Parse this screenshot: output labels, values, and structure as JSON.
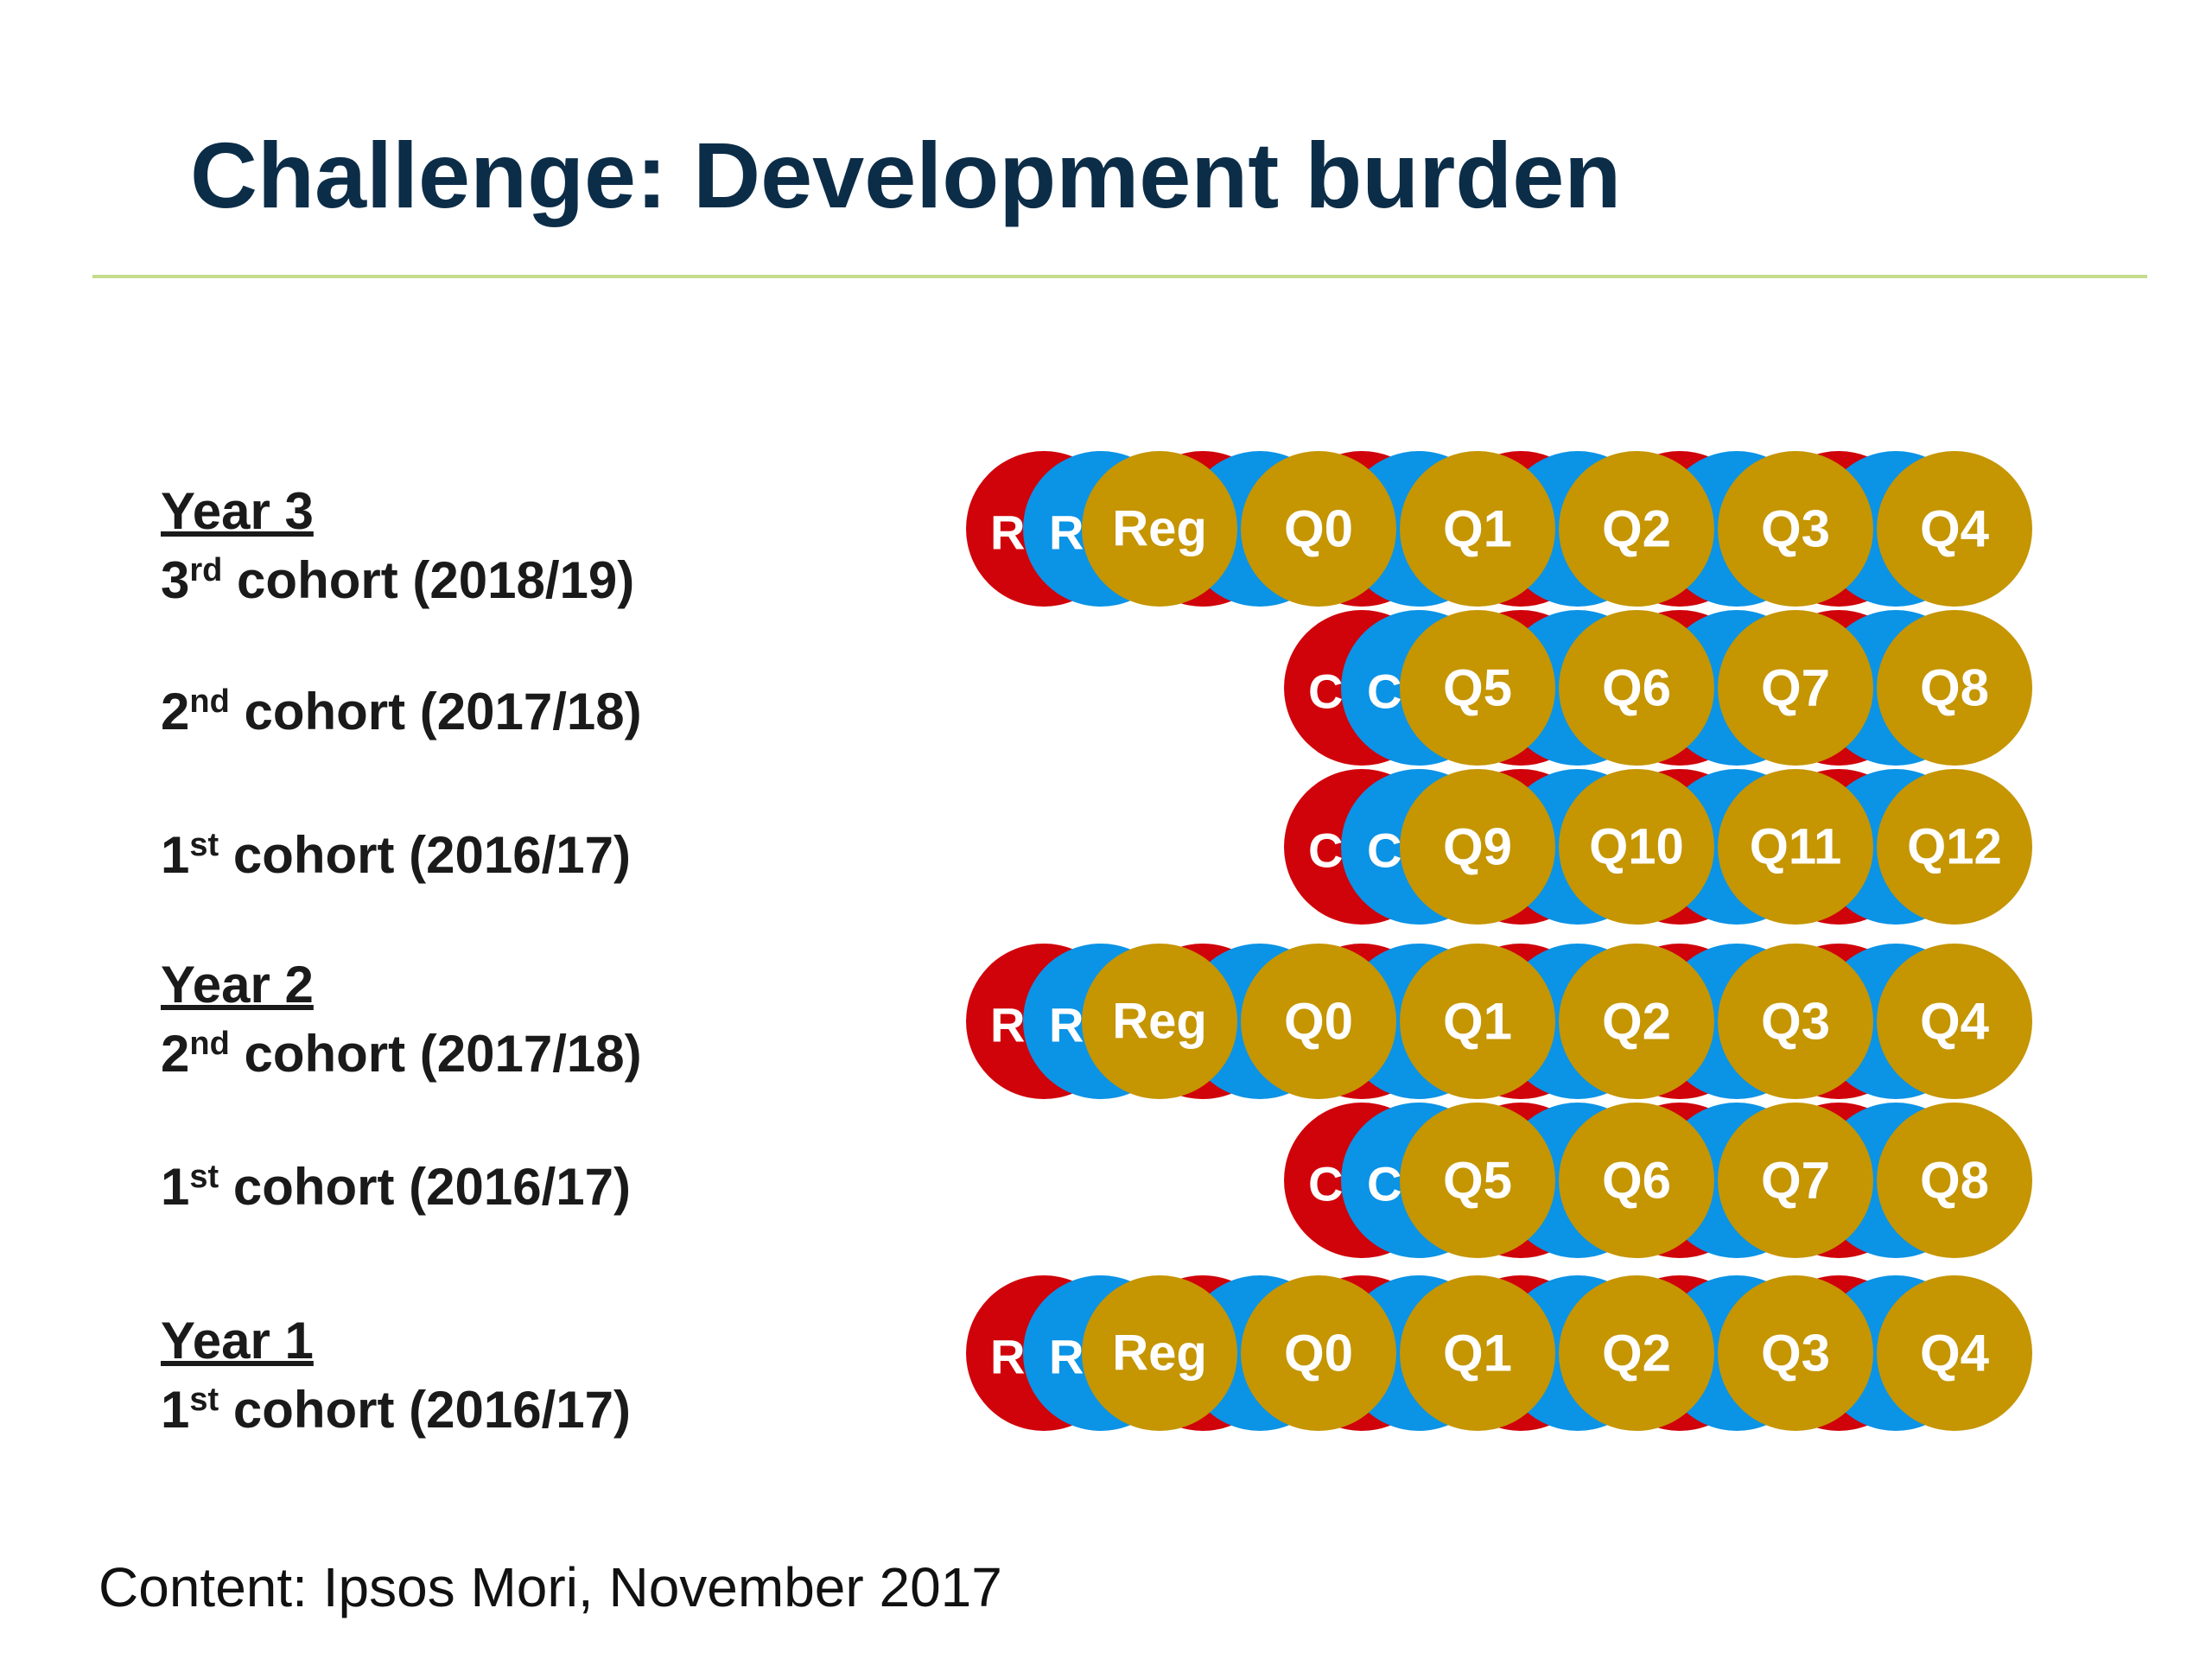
{
  "title": "Challenge: Development burden",
  "footer": "Content: Ipsos Mori, November 2017",
  "colors": {
    "title": "#0c2d48",
    "rule": "#c4dc8c",
    "red": "#d0020a",
    "blue": "#0b93e6",
    "gold": "#c59502"
  },
  "rows": [
    {
      "year": "Year 3",
      "cohort_ord": "3",
      "cohort_sup": "rd",
      "cohort_rest": " cohort (2018/19)",
      "red_label": "R",
      "blue_label": "R",
      "bubbles": [
        "Reg",
        "Q0",
        "Q1",
        "Q2",
        "Q3",
        "Q4"
      ]
    },
    {
      "year": "",
      "cohort_ord": "2",
      "cohort_sup": "nd",
      "cohort_rest": " cohort (2017/18)",
      "red_label": "C",
      "blue_label": "C",
      "bubbles": [
        "Q5",
        "Q6",
        "Q7",
        "Q8"
      ]
    },
    {
      "year": "",
      "cohort_ord": "1",
      "cohort_sup": "st",
      "cohort_rest": " cohort (2016/17)",
      "red_label": "C",
      "blue_label": "C",
      "bubbles": [
        "Q9",
        "Q10",
        "Q11",
        "Q12"
      ]
    },
    {
      "year": "Year 2",
      "cohort_ord": "2",
      "cohort_sup": "nd",
      "cohort_rest": " cohort (2017/18)",
      "red_label": "R",
      "blue_label": "R",
      "bubbles": [
        "Reg",
        "Q0",
        "Q1",
        "Q2",
        "Q3",
        "Q4"
      ]
    },
    {
      "year": "",
      "cohort_ord": "1",
      "cohort_sup": "st",
      "cohort_rest": " cohort (2016/17)",
      "red_label": "C",
      "blue_label": "C",
      "bubbles": [
        "Q5",
        "Q6",
        "Q7",
        "Q8"
      ]
    },
    {
      "year": "Year 1",
      "cohort_ord": "1",
      "cohort_sup": "st",
      "cohort_rest": " cohort (2016/17)",
      "red_label": "R",
      "blue_label": "R",
      "bubbles": [
        "Reg",
        "Q0",
        "Q1",
        "Q2",
        "Q3",
        "Q4"
      ]
    }
  ]
}
